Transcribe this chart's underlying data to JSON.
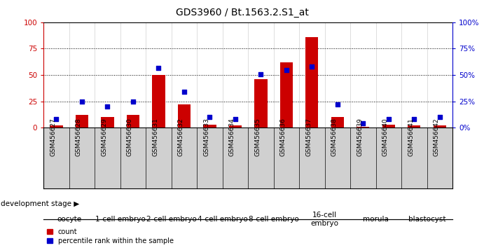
{
  "title": "GDS3960 / Bt.1563.2.S1_at",
  "samples": [
    "GSM456627",
    "GSM456628",
    "GSM456629",
    "GSM456630",
    "GSM456631",
    "GSM456632",
    "GSM456633",
    "GSM456634",
    "GSM456635",
    "GSM456636",
    "GSM456637",
    "GSM456638",
    "GSM456639",
    "GSM456640",
    "GSM456641",
    "GSM456642"
  ],
  "count": [
    2,
    12,
    10,
    12,
    50,
    22,
    3,
    2,
    46,
    62,
    86,
    10,
    1,
    3,
    2,
    2
  ],
  "percentile": [
    8,
    25,
    20,
    25,
    57,
    34,
    10,
    8,
    51,
    55,
    58,
    22,
    4,
    8,
    8,
    10
  ],
  "stages": [
    {
      "label": "oocyte",
      "start": 0,
      "end": 2,
      "color": "#bbffbb"
    },
    {
      "label": "1-cell embryo",
      "start": 2,
      "end": 4,
      "color": "#99ff99"
    },
    {
      "label": "2-cell embryo",
      "start": 4,
      "end": 6,
      "color": "#bbffbb"
    },
    {
      "label": "4-cell embryo",
      "start": 6,
      "end": 8,
      "color": "#99ff99"
    },
    {
      "label": "8-cell embryo",
      "start": 8,
      "end": 10,
      "color": "#bbffbb"
    },
    {
      "label": "16-cell\nembryo",
      "start": 10,
      "end": 12,
      "color": "#99ff99"
    },
    {
      "label": "morula",
      "start": 12,
      "end": 14,
      "color": "#bbffbb"
    },
    {
      "label": "blastocyst",
      "start": 14,
      "end": 16,
      "color": "#99ff99"
    }
  ],
  "bar_color": "#cc0000",
  "dot_color": "#0000cc",
  "yticks": [
    0,
    25,
    50,
    75,
    100
  ],
  "background_plot": "#ffffff",
  "sample_bg_color": "#d0d0d0",
  "title_fontsize": 10,
  "axis_tick_fontsize": 7.5,
  "sample_fontsize": 6.5,
  "stage_fontsize": 7.5,
  "dev_stage_fontsize": 7.5,
  "legend_fontsize": 7
}
